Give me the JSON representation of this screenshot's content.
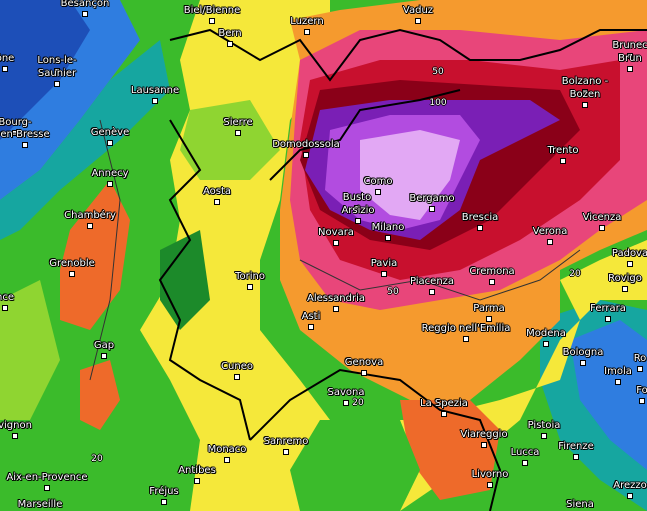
{
  "palette": {
    "blue_dark": "#1d4fb8",
    "blue": "#2f7de0",
    "teal": "#16a6a0",
    "green_dark": "#1c8a2a",
    "green": "#3bbb2b",
    "lightgreen": "#8fd531",
    "yellow": "#f5e83a",
    "orange": "#f59a2e",
    "orangered": "#ee6a2a",
    "red": "#e3354d",
    "pink": "#e8467a",
    "crimson": "#c8102e",
    "darkred": "#8a0018",
    "purple": "#7a1fb5",
    "violet": "#b24ce0",
    "lilac": "#e2a8f4"
  },
  "cities": [
    {
      "name": "Besançon",
      "k": "besancon"
    },
    {
      "name": "Biel/Bienne",
      "k": "biel"
    },
    {
      "name": "Bern",
      "k": "bern"
    },
    {
      "name": "Luzern",
      "k": "luzern"
    },
    {
      "name": "Vaduz",
      "k": "vaduz"
    },
    {
      "name": "Brunec",
      "k": "brunec"
    },
    {
      "name": "Brun",
      "k": "brun"
    },
    {
      "name": "Lons-le-",
      "k": "lons1"
    },
    {
      "name": "Saunier",
      "k": "lons2"
    },
    {
      "name": "Lausanne",
      "k": "lausanne"
    },
    {
      "name": "Bolzano -",
      "k": "bolzano1"
    },
    {
      "name": "Bozen",
      "k": "bolzano2"
    },
    {
      "name": "Bourg-",
      "k": "bourg1"
    },
    {
      "name": "en-Bresse",
      "k": "bourg2"
    },
    {
      "name": "Genève",
      "k": "geneve"
    },
    {
      "name": "Sierre",
      "k": "sierre"
    },
    {
      "name": "Trento",
      "k": "trento"
    },
    {
      "name": "Domodossola",
      "k": "domodossola"
    },
    {
      "name": "Annecy",
      "k": "annecy"
    },
    {
      "name": "Como",
      "k": "como"
    },
    {
      "name": "Busto",
      "k": "busto1"
    },
    {
      "name": "Arsizio",
      "k": "busto2"
    },
    {
      "name": "Aosta",
      "k": "aosta"
    },
    {
      "name": "Bergamo",
      "k": "bergamo"
    },
    {
      "name": "Chambéry",
      "k": "chambery"
    },
    {
      "name": "Brescia",
      "k": "brescia"
    },
    {
      "name": "Vicenza",
      "k": "vicenza"
    },
    {
      "name": "Novara",
      "k": "novara"
    },
    {
      "name": "Milano",
      "k": "milano"
    },
    {
      "name": "Verona",
      "k": "verona"
    },
    {
      "name": "Padova",
      "k": "padova"
    },
    {
      "name": "Grenoble",
      "k": "grenoble"
    },
    {
      "name": "Pavia",
      "k": "pavia"
    },
    {
      "name": "Cremona",
      "k": "cremona"
    },
    {
      "name": "Rovigo",
      "k": "rovigo"
    },
    {
      "name": "Torino",
      "k": "torino"
    },
    {
      "name": "Piacenza",
      "k": "piacenza"
    },
    {
      "name": "Alessandria",
      "k": "alessandria"
    },
    {
      "name": "Parma",
      "k": "parma"
    },
    {
      "name": "Ferrara",
      "k": "ferrara"
    },
    {
      "name": "Asti",
      "k": "asti"
    },
    {
      "name": "Reggio nell'Emilia",
      "k": "reggio"
    },
    {
      "name": "Modena",
      "k": "modena"
    },
    {
      "name": "Gap",
      "k": "gap"
    },
    {
      "name": "Bologna",
      "k": "bologna"
    },
    {
      "name": "Imola",
      "k": "imola"
    },
    {
      "name": "Genova",
      "k": "genova"
    },
    {
      "name": "Cuneo",
      "k": "cuneo"
    },
    {
      "name": "Savona",
      "k": "savona"
    },
    {
      "name": "La Spezia",
      "k": "laspezia"
    },
    {
      "name": "Pistoia",
      "k": "pistoia"
    },
    {
      "name": "Viareggio",
      "k": "viareggio"
    },
    {
      "name": "Sanremo",
      "k": "sanremo"
    },
    {
      "name": "Monaco",
      "k": "monaco"
    },
    {
      "name": "Lucca",
      "k": "lucca"
    },
    {
      "name": "Firenze",
      "k": "firenze"
    },
    {
      "name": "Antibes",
      "k": "antibes"
    },
    {
      "name": "Aix-en-Provence",
      "k": "aix"
    },
    {
      "name": "Livorno",
      "k": "livorno"
    },
    {
      "name": "Fréjus",
      "k": "frejus"
    },
    {
      "name": "Marseille",
      "k": "marseille"
    },
    {
      "name": "Siena",
      "k": "siena"
    },
    {
      "name": "Arezzo",
      "k": "arezzo"
    },
    {
      "name": "ône",
      "k": "one"
    },
    {
      "name": "vignon",
      "k": "avignon"
    },
    {
      "name": "nce",
      "k": "nce"
    },
    {
      "name": "Fo",
      "k": "fo"
    },
    {
      "name": "Ro",
      "k": "ro"
    }
  ],
  "isolines": [
    {
      "v": "50",
      "k": "i50a"
    },
    {
      "v": "100",
      "k": "i100"
    },
    {
      "v": "50",
      "k": "i50b"
    },
    {
      "v": "20",
      "k": "i20a"
    },
    {
      "v": "20",
      "k": "i20b"
    },
    {
      "v": "20",
      "k": "i20c"
    }
  ]
}
